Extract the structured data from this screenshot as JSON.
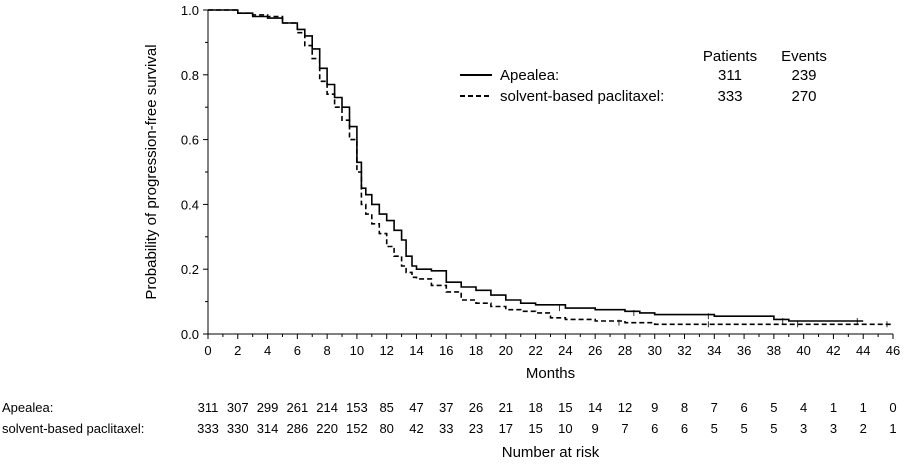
{
  "chart_data": {
    "type": "line",
    "title": "",
    "xlabel": "Months",
    "ylabel": "Probability of progression-free survival",
    "xlim": [
      0,
      46
    ],
    "ylim": [
      0.0,
      1.0
    ],
    "x_ticks": [
      0,
      2,
      4,
      6,
      8,
      10,
      12,
      14,
      16,
      18,
      20,
      22,
      24,
      26,
      28,
      30,
      32,
      34,
      36,
      38,
      40,
      42,
      44,
      46
    ],
    "y_ticks": [
      0.0,
      0.2,
      0.4,
      0.6,
      0.8,
      1.0
    ],
    "grid": false,
    "legend": {
      "placement": "top-right",
      "col_patients": "Patients",
      "col_events": "Events"
    },
    "series": [
      {
        "name": "Apealea:",
        "line_style": "solid",
        "patients": "311",
        "events": "239",
        "x": [
          0,
          1.5,
          2,
          3,
          4,
          5,
          6,
          6.5,
          7,
          7.5,
          8,
          8.5,
          9,
          9.5,
          10,
          10.3,
          10.6,
          11,
          11.5,
          12,
          12.5,
          13,
          13.3,
          13.7,
          14,
          15,
          16,
          17,
          18,
          19,
          20,
          21,
          22,
          24,
          26,
          28,
          29,
          30,
          32,
          34,
          36,
          38,
          39,
          40,
          42,
          44
        ],
        "y": [
          1.0,
          1.0,
          0.99,
          0.98,
          0.975,
          0.96,
          0.94,
          0.92,
          0.88,
          0.82,
          0.77,
          0.73,
          0.7,
          0.64,
          0.53,
          0.45,
          0.43,
          0.4,
          0.37,
          0.35,
          0.32,
          0.29,
          0.24,
          0.21,
          0.2,
          0.195,
          0.16,
          0.145,
          0.135,
          0.12,
          0.105,
          0.095,
          0.09,
          0.08,
          0.075,
          0.07,
          0.065,
          0.06,
          0.06,
          0.055,
          0.055,
          0.045,
          0.04,
          0.04,
          0.04,
          0.04
        ]
      },
      {
        "name": "solvent-based paclitaxel:",
        "line_style": "dashed",
        "patients": "333",
        "events": "270",
        "x": [
          0,
          1.5,
          2,
          3,
          4,
          5,
          6,
          6.5,
          7,
          7.5,
          8,
          8.5,
          9,
          9.5,
          10,
          10.3,
          10.6,
          11,
          11.5,
          12,
          12.5,
          13,
          13.3,
          13.7,
          14,
          15,
          16,
          17,
          18,
          19,
          20,
          21,
          22,
          23,
          24,
          26,
          28,
          30,
          32,
          34,
          36,
          38,
          40,
          42,
          44,
          46
        ],
        "y": [
          1.0,
          1.0,
          0.99,
          0.985,
          0.98,
          0.96,
          0.93,
          0.89,
          0.85,
          0.78,
          0.74,
          0.7,
          0.66,
          0.6,
          0.5,
          0.4,
          0.37,
          0.34,
          0.31,
          0.27,
          0.24,
          0.21,
          0.19,
          0.175,
          0.17,
          0.15,
          0.13,
          0.105,
          0.095,
          0.085,
          0.075,
          0.07,
          0.065,
          0.05,
          0.045,
          0.04,
          0.035,
          0.03,
          0.03,
          0.03,
          0.03,
          0.03,
          0.03,
          0.03,
          0.03,
          0.03
        ]
      }
    ],
    "risk_table": {
      "title": "Number at risk",
      "times": [
        0,
        2,
        4,
        6,
        8,
        10,
        12,
        14,
        16,
        18,
        20,
        22,
        24,
        26,
        28,
        30,
        32,
        34,
        36,
        38,
        40,
        42,
        44,
        46
      ],
      "rows": [
        {
          "label": "Apealea:",
          "values": [
            "311",
            "307",
            "299",
            "261",
            "214",
            "153",
            "85",
            "47",
            "37",
            "26",
            "21",
            "18",
            "15",
            "14",
            "12",
            "9",
            "8",
            "7",
            "6",
            "5",
            "4",
            "1",
            "1",
            "0"
          ]
        },
        {
          "label": "solvent-based paclitaxel:",
          "values": [
            "333",
            "330",
            "314",
            "286",
            "220",
            "152",
            "80",
            "42",
            "33",
            "23",
            "17",
            "15",
            "10",
            "9",
            "7",
            "6",
            "6",
            "5",
            "5",
            "5",
            "3",
            "3",
            "2",
            "1"
          ]
        }
      ]
    }
  }
}
